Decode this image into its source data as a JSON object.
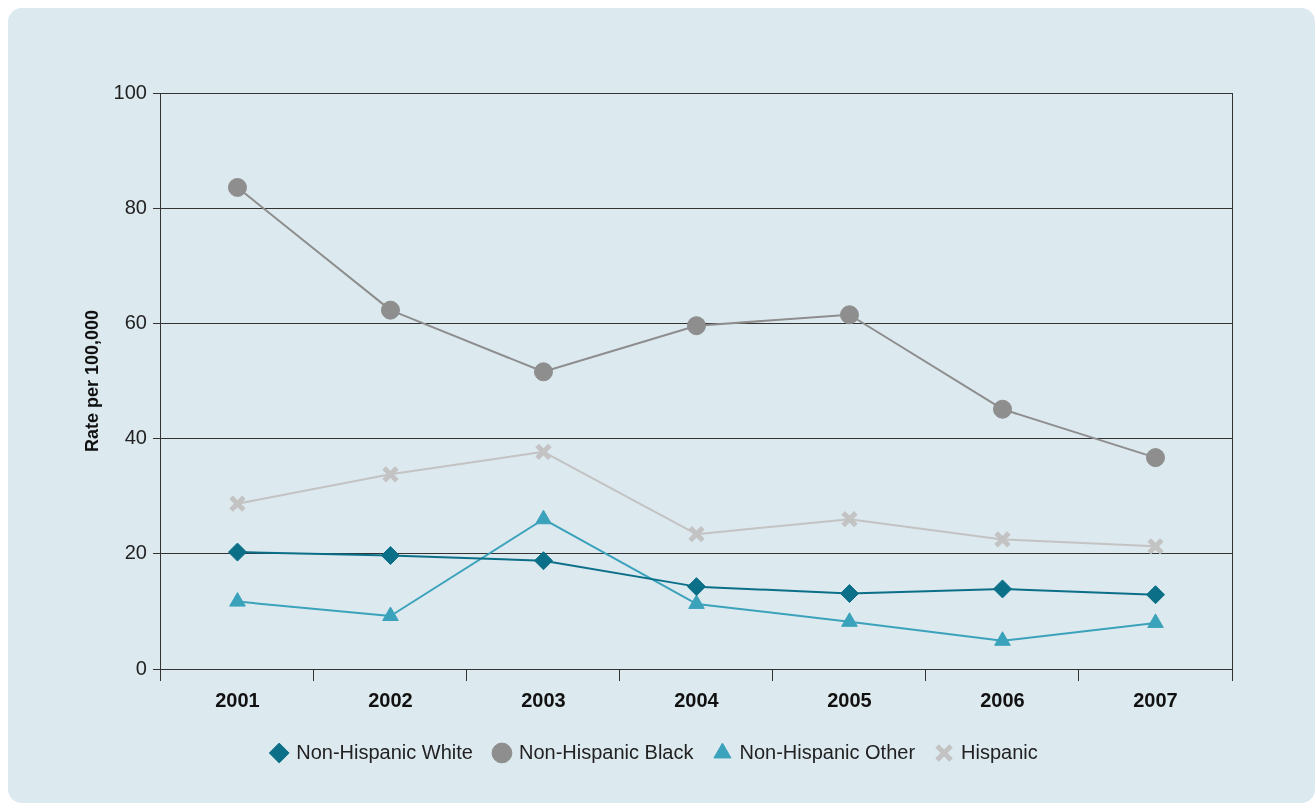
{
  "chart_data": {
    "type": "line",
    "ylabel": "Rate per 100,000",
    "categories": [
      "2001",
      "2002",
      "2003",
      "2004",
      "2005",
      "2006",
      "2007"
    ],
    "ylim": [
      0,
      100
    ],
    "yticks": [
      0,
      20,
      40,
      60,
      80,
      100
    ],
    "grid": "y",
    "legend": "bottom",
    "line_style": "solid",
    "series": [
      {
        "name": "Non-Hispanic White",
        "color": "#0b6f88",
        "marker": "diamond",
        "values": [
          20.3,
          19.7,
          18.8,
          14.3,
          13.1,
          13.9,
          12.9
        ]
      },
      {
        "name": "Non-Hispanic Black",
        "color": "#8e8e8e",
        "marker": "circle",
        "values": [
          83.6,
          62.3,
          51.6,
          59.6,
          61.5,
          45.1,
          36.7
        ]
      },
      {
        "name": "Non-Hispanic Other",
        "color": "#3ba2bb",
        "marker": "triangle",
        "values": [
          11.7,
          9.2,
          26.0,
          11.3,
          8.2,
          4.9,
          8.0
        ]
      },
      {
        "name": "Hispanic",
        "color": "#c3c3c3",
        "marker": "cross",
        "values": [
          28.7,
          33.8,
          37.7,
          23.4,
          26.0,
          22.5,
          21.3
        ]
      }
    ]
  }
}
